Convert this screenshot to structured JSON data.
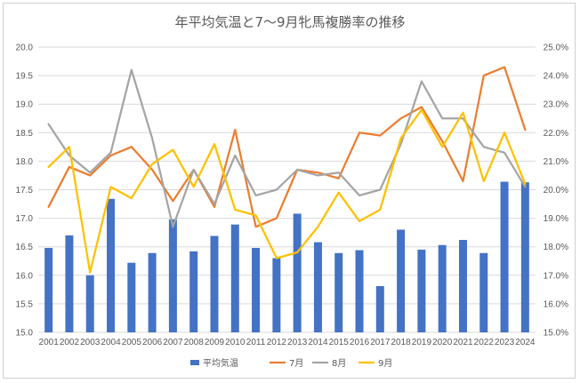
{
  "chart_data": {
    "type": "bar",
    "title": "年平均気温と7～9月牝馬複勝率の推移",
    "categories": [
      "2001",
      "2002",
      "2003",
      "2004",
      "2005",
      "2006",
      "2007",
      "2008",
      "2009",
      "2010",
      "2011",
      "2012",
      "2013",
      "2014",
      "2015",
      "2016",
      "2017",
      "2018",
      "2019",
      "2020",
      "2021",
      "2022",
      "2023",
      "2024"
    ],
    "left_axis": {
      "min": 15.0,
      "max": 20.0,
      "step": 0.5,
      "ticks": [
        "15.0",
        "15.5",
        "16.0",
        "16.5",
        "17.0",
        "17.5",
        "18.0",
        "18.5",
        "19.0",
        "19.5",
        "20.0"
      ]
    },
    "right_axis": {
      "min": 15.0,
      "max": 25.0,
      "step": 1.0,
      "unit": "%",
      "ticks": [
        "15.0%",
        "16.0%",
        "17.0%",
        "18.0%",
        "19.0%",
        "20.0%",
        "21.0%",
        "22.0%",
        "23.0%",
        "24.0%",
        "25.0%"
      ]
    },
    "grid": true,
    "legend_position": "bottom",
    "series": [
      {
        "name": "平均気温",
        "type": "bar",
        "axis": "left",
        "color": "#4472C4",
        "values": [
          16.48,
          16.7,
          16.0,
          17.34,
          16.22,
          16.39,
          16.98,
          16.42,
          16.69,
          16.89,
          16.48,
          16.3,
          17.08,
          16.58,
          16.39,
          16.44,
          15.81,
          16.8,
          16.45,
          16.53,
          16.62,
          16.39,
          17.64,
          17.63
        ]
      },
      {
        "name": "7月",
        "type": "line",
        "axis": "right",
        "color": "#ED7D31",
        "values": [
          19.4,
          20.8,
          20.5,
          21.2,
          21.5,
          20.7,
          19.6,
          20.7,
          19.4,
          22.1,
          18.7,
          19.0,
          20.7,
          20.6,
          20.4,
          22.0,
          21.9,
          22.5,
          22.9,
          21.7,
          20.3,
          24.0,
          24.3,
          22.1
        ]
      },
      {
        "name": "8月",
        "type": "line",
        "axis": "right",
        "color": "#A5A5A5",
        "values": [
          22.3,
          21.2,
          20.6,
          21.3,
          24.2,
          21.8,
          18.7,
          20.7,
          19.5,
          21.2,
          19.8,
          20.0,
          20.7,
          20.5,
          20.6,
          19.8,
          20.0,
          21.6,
          23.8,
          22.5,
          22.5,
          21.5,
          21.3,
          20.1
        ]
      },
      {
        "name": "9月",
        "type": "line",
        "axis": "right",
        "color": "#FFC000",
        "values": [
          20.8,
          21.5,
          17.1,
          20.1,
          19.7,
          20.9,
          21.4,
          20.1,
          21.6,
          19.3,
          19.1,
          17.6,
          17.8,
          18.7,
          19.9,
          18.9,
          19.3,
          21.8,
          22.8,
          21.5,
          22.7,
          20.3,
          22.0,
          20.2
        ]
      }
    ]
  }
}
